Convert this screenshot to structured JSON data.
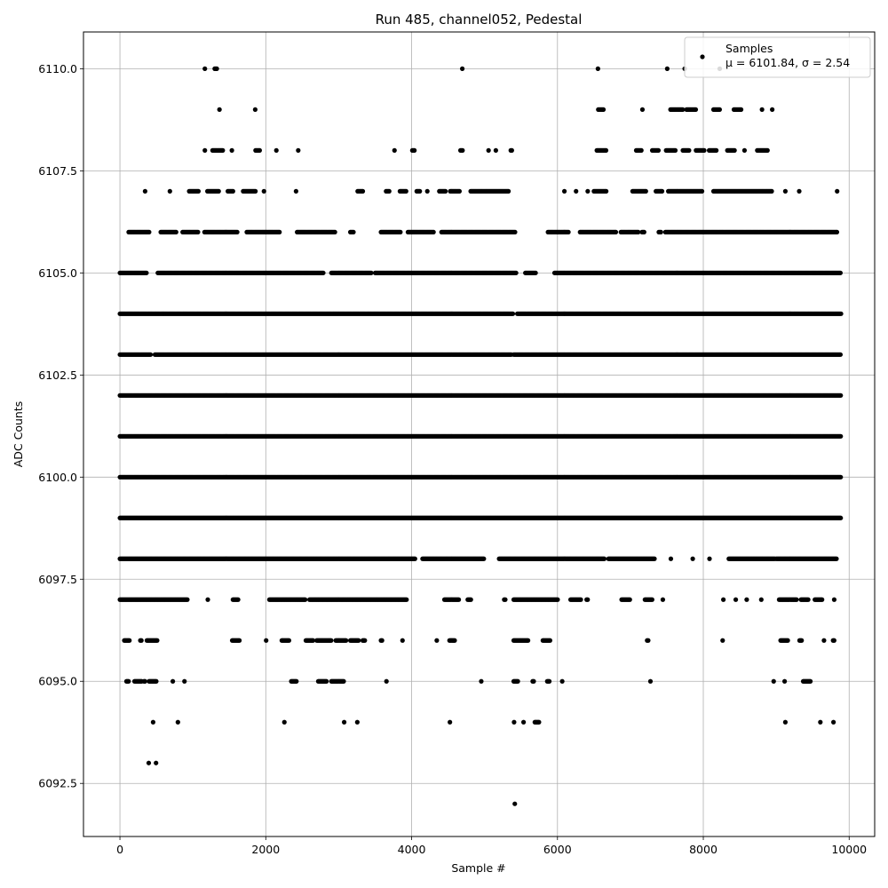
{
  "chart_data": {
    "type": "scatter",
    "title": "Run 485, channel052, Pedestal",
    "xlabel": "Sample #",
    "ylabel": "ADC Counts",
    "xlim": [
      -500,
      10350
    ],
    "ylim": [
      6091.2,
      6110.9
    ],
    "xticks": [
      0,
      2000,
      4000,
      6000,
      8000,
      10000
    ],
    "xtick_labels": [
      "0",
      "2000",
      "4000",
      "6000",
      "8000",
      "10000"
    ],
    "yticks": [
      6092.5,
      6095.0,
      6097.5,
      6100.0,
      6102.5,
      6105.0,
      6107.5,
      6110.0
    ],
    "ytick_labels": [
      "6092.5",
      "6095.0",
      "6097.5",
      "6100.0",
      "6102.5",
      "6105.0",
      "6107.5",
      "6110.0"
    ],
    "grid": true,
    "marker_color": "#000000",
    "legend": {
      "placement": "top-right",
      "entries": [
        {
          "label": "Samples",
          "sublabel": "μ = 6101.84, σ = 2.54"
        }
      ]
    },
    "series": [
      {
        "name": "Samples",
        "segments": [
          {
            "y": 6110,
            "ranges": [
              [
                1160,
                1170
              ],
              [
                1300,
                1340
              ],
              [
                4690,
                4700
              ],
              [
                6550,
                6560
              ],
              [
                7500,
                7510
              ],
              [
                7740,
                7750
              ],
              [
                8220,
                8230
              ]
            ]
          },
          {
            "y": 6109,
            "ranges": [
              [
                1360,
                1370
              ],
              [
                1850,
                1860
              ],
              [
                6560,
                6640
              ],
              [
                7160,
                7170
              ],
              [
                7550,
                7720
              ],
              [
                7770,
                7900
              ],
              [
                8140,
                8230
              ],
              [
                8420,
                8530
              ],
              [
                8800,
                8810
              ],
              [
                8940,
                8950
              ]
            ]
          },
          {
            "y": 6108,
            "ranges": [
              [
                1160,
                1170
              ],
              [
                1270,
                1420
              ],
              [
                1530,
                1540
              ],
              [
                1860,
                1920
              ],
              [
                2140,
                2150
              ],
              [
                2440,
                2450
              ],
              [
                3760,
                3770
              ],
              [
                4010,
                4050
              ],
              [
                4670,
                4700
              ],
              [
                5050,
                5060
              ],
              [
                5150,
                5160
              ],
              [
                5360,
                5380
              ],
              [
                6540,
                6670
              ],
              [
                7080,
                7150
              ],
              [
                7300,
                7390
              ],
              [
                7490,
                7620
              ],
              [
                7720,
                7810
              ],
              [
                7900,
                8020
              ],
              [
                8080,
                8180
              ],
              [
                8330,
                8440
              ],
              [
                8560,
                8570
              ],
              [
                8740,
                8880
              ]
            ]
          },
          {
            "y": 6107,
            "ranges": [
              [
                340,
                350
              ],
              [
                680,
                690
              ],
              [
                950,
                1080
              ],
              [
                1200,
                1360
              ],
              [
                1480,
                1550
              ],
              [
                1690,
                1870
              ],
              [
                1970,
                1980
              ],
              [
                2410,
                2420
              ],
              [
                3260,
                3330
              ],
              [
                3650,
                3700
              ],
              [
                3840,
                3930
              ],
              [
                4070,
                4120
              ],
              [
                4210,
                4220
              ],
              [
                4380,
                4470
              ],
              [
                4530,
                4660
              ],
              [
                4810,
                5330
              ],
              [
                6090,
                6100
              ],
              [
                6250,
                6260
              ],
              [
                6410,
                6420
              ],
              [
                6500,
                6680
              ],
              [
                7030,
                7220
              ],
              [
                7350,
                7440
              ],
              [
                7520,
                7990
              ],
              [
                8140,
                8950
              ],
              [
                9120,
                9130
              ],
              [
                9310,
                9320
              ],
              [
                9830,
                9840
              ]
            ]
          },
          {
            "y": 6106,
            "ranges": [
              [
                120,
                400
              ],
              [
                560,
                780
              ],
              [
                860,
                1070
              ],
              [
                1160,
                1610
              ],
              [
                1740,
                2200
              ],
              [
                2430,
                2960
              ],
              [
                3160,
                3210
              ],
              [
                3580,
                3850
              ],
              [
                3950,
                4310
              ],
              [
                4410,
                5420
              ],
              [
                5870,
                6160
              ],
              [
                6310,
                6810
              ],
              [
                6870,
                7120
              ],
              [
                7160,
                7200
              ],
              [
                7390,
                7420
              ],
              [
                7480,
                9840
              ]
            ]
          },
          {
            "y": 6105,
            "ranges": [
              [
                0,
                370
              ],
              [
                520,
                2800
              ],
              [
                2900,
                3450
              ],
              [
                3500,
                5440
              ],
              [
                5560,
                5700
              ],
              [
                5960,
                9880
              ]
            ]
          },
          {
            "y": 6104,
            "ranges": [
              [
                0,
                600
              ],
              [
                600,
                5390
              ],
              [
                5450,
                9890
              ]
            ]
          },
          {
            "y": 6103,
            "ranges": [
              [
                0,
                420
              ],
              [
                480,
                5370
              ],
              [
                5400,
                9890
              ]
            ]
          },
          {
            "y": 6102,
            "ranges": [
              [
                0,
                9890
              ]
            ]
          },
          {
            "y": 6101,
            "ranges": [
              [
                0,
                9890
              ]
            ]
          },
          {
            "y": 6100,
            "ranges": [
              [
                0,
                9890
              ]
            ]
          },
          {
            "y": 6099,
            "ranges": [
              [
                0,
                9890
              ]
            ]
          },
          {
            "y": 6098,
            "ranges": [
              [
                0,
                4050
              ],
              [
                4150,
                5000
              ],
              [
                5200,
                6650
              ],
              [
                6700,
                7330
              ],
              [
                7550,
                7560
              ],
              [
                7850,
                7860
              ],
              [
                8080,
                8090
              ],
              [
                8350,
                8990
              ],
              [
                9000,
                9830
              ]
            ]
          },
          {
            "y": 6097,
            "ranges": [
              [
                0,
                930
              ],
              [
                1200,
                1210
              ],
              [
                1550,
                1630
              ],
              [
                2050,
                2550
              ],
              [
                2600,
                3930
              ],
              [
                4450,
                4650
              ],
              [
                4770,
                4820
              ],
              [
                5270,
                5290
              ],
              [
                5400,
                6010
              ],
              [
                6180,
                6330
              ],
              [
                6400,
                6420
              ],
              [
                6880,
                7000
              ],
              [
                7200,
                7300
              ],
              [
                7440,
                7450
              ],
              [
                8270,
                8280
              ],
              [
                8440,
                8450
              ],
              [
                8590,
                8600
              ],
              [
                8790,
                8800
              ],
              [
                9040,
                9280
              ],
              [
                9340,
                9440
              ],
              [
                9530,
                9640
              ],
              [
                9790,
                9800
              ]
            ]
          },
          {
            "y": 6096,
            "ranges": [
              [
                60,
                130
              ],
              [
                280,
                300
              ],
              [
                370,
                520
              ],
              [
                1540,
                1640
              ],
              [
                2000,
                2010
              ],
              [
                2220,
                2330
              ],
              [
                2550,
                2650
              ],
              [
                2700,
                2900
              ],
              [
                2960,
                3100
              ],
              [
                3160,
                3280
              ],
              [
                3330,
                3360
              ],
              [
                3580,
                3600
              ],
              [
                3870,
                3880
              ],
              [
                4340,
                4350
              ],
              [
                4520,
                4600
              ],
              [
                5400,
                5600
              ],
              [
                5800,
                5900
              ],
              [
                7230,
                7250
              ],
              [
                8260,
                8270
              ],
              [
                9060,
                9160
              ],
              [
                9320,
                9360
              ],
              [
                9650,
                9660
              ],
              [
                9780,
                9800
              ]
            ]
          },
          {
            "y": 6095,
            "ranges": [
              [
                90,
                120
              ],
              [
                200,
                300
              ],
              [
                330,
                350
              ],
              [
                400,
                500
              ],
              [
                720,
                730
              ],
              [
                880,
                890
              ],
              [
                2350,
                2430
              ],
              [
                2720,
                2840
              ],
              [
                2900,
                3080
              ],
              [
                3650,
                3660
              ],
              [
                4950,
                4960
              ],
              [
                5400,
                5460
              ],
              [
                5660,
                5680
              ],
              [
                5860,
                5900
              ],
              [
                6060,
                6070
              ],
              [
                7270,
                7280
              ],
              [
                8960,
                8970
              ],
              [
                9110,
                9120
              ],
              [
                9370,
                9480
              ]
            ]
          },
          {
            "y": 6094,
            "ranges": [
              [
                450,
                460
              ],
              [
                790,
                800
              ],
              [
                2250,
                2260
              ],
              [
                3070,
                3080
              ],
              [
                3250,
                3260
              ],
              [
                4520,
                4530
              ],
              [
                5400,
                5410
              ],
              [
                5530,
                5540
              ],
              [
                5690,
                5750
              ],
              [
                9120,
                9130
              ],
              [
                9600,
                9610
              ],
              [
                9780,
                9790
              ]
            ]
          },
          {
            "y": 6093,
            "ranges": [
              [
                390,
                400
              ],
              [
                490,
                500
              ]
            ]
          },
          {
            "y": 6092,
            "ranges": [
              [
                5410,
                5420
              ]
            ]
          }
        ]
      }
    ]
  }
}
